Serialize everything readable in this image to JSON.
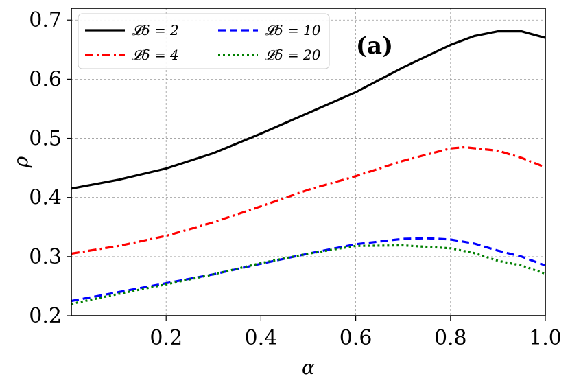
{
  "chart_data": {
    "type": "line",
    "title": "",
    "panel_label": "(a)",
    "xlabel": "α",
    "ylabel": "ρ",
    "xlim": [
      0.0,
      1.0
    ],
    "ylim": [
      0.2,
      0.72
    ],
    "xticks": [
      0.2,
      0.4,
      0.6,
      0.8,
      1.0
    ],
    "xtick_labels": [
      "0.2",
      "0.4",
      "0.6",
      "0.8",
      "1.0"
    ],
    "yticks": [
      0.2,
      0.3,
      0.4,
      0.5,
      0.6,
      0.7
    ],
    "ytick_labels": [
      "0.2",
      "0.3",
      "0.4",
      "0.5",
      "0.6",
      "0.7"
    ],
    "grid": true,
    "legend_placement": "top-left",
    "series": [
      {
        "name": "𝓛δ = 2",
        "color": "#000000",
        "style": "solid",
        "x": [
          0.0,
          0.1,
          0.2,
          0.3,
          0.4,
          0.5,
          0.6,
          0.7,
          0.8,
          0.85,
          0.9,
          0.95,
          1.0
        ],
        "y": [
          0.415,
          0.43,
          0.449,
          0.475,
          0.508,
          0.543,
          0.578,
          0.62,
          0.658,
          0.673,
          0.681,
          0.681,
          0.67
        ]
      },
      {
        "name": "𝓛δ = 4",
        "color": "#ff0000",
        "style": "dashdot",
        "x": [
          0.0,
          0.1,
          0.2,
          0.3,
          0.4,
          0.5,
          0.6,
          0.7,
          0.8,
          0.83,
          0.9,
          0.95,
          1.0
        ],
        "y": [
          0.305,
          0.318,
          0.335,
          0.358,
          0.385,
          0.413,
          0.436,
          0.462,
          0.483,
          0.485,
          0.479,
          0.467,
          0.451
        ]
      },
      {
        "name": "𝓛δ = 10",
        "color": "#0000ff",
        "style": "dashed",
        "x": [
          0.0,
          0.1,
          0.2,
          0.3,
          0.4,
          0.5,
          0.6,
          0.7,
          0.75,
          0.8,
          0.85,
          0.9,
          0.95,
          1.0
        ],
        "y": [
          0.225,
          0.24,
          0.255,
          0.27,
          0.288,
          0.305,
          0.321,
          0.33,
          0.331,
          0.329,
          0.322,
          0.31,
          0.3,
          0.285
        ]
      },
      {
        "name": "𝓛δ = 20",
        "color": "#008000",
        "style": "dotted",
        "x": [
          0.0,
          0.1,
          0.2,
          0.3,
          0.4,
          0.5,
          0.6,
          0.7,
          0.8,
          0.85,
          0.9,
          0.95,
          1.0
        ],
        "y": [
          0.22,
          0.237,
          0.253,
          0.27,
          0.289,
          0.305,
          0.318,
          0.319,
          0.314,
          0.306,
          0.293,
          0.285,
          0.271
        ]
      }
    ]
  }
}
